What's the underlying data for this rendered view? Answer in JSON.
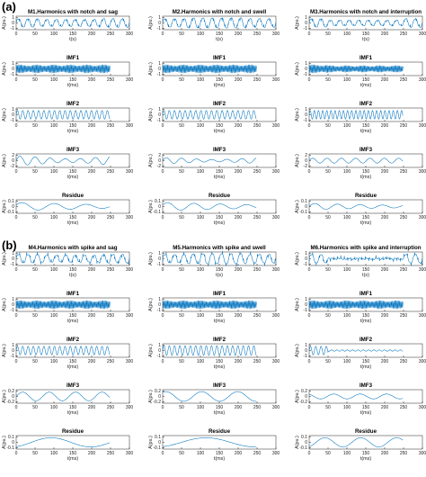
{
  "chart_data": {
    "type": "line",
    "groups": [
      {
        "label": "(a)",
        "columns": [
          {
            "signal_title": "M1.Harmonics with notch and sag",
            "disturbance": "notch_sag",
            "subplots": [
              {
                "title": "",
                "ylabel": "A(pu.)",
                "xlabel": "t(s)",
                "xlim": [
                  0,
                  300
                ],
                "yticks": [
                  "1",
                  "0",
                  "-1"
                ],
                "signal": "signal"
              },
              {
                "title": "IMF1",
                "ylabel": "A(pu.)",
                "xlabel": "t(ms)",
                "xlim": [
                  0,
                  300
                ],
                "yticks": [
                  "1",
                  "0",
                  "-1"
                ],
                "signal": "imf1"
              },
              {
                "title": "IMF2",
                "ylabel": "A(pu.)",
                "xlabel": "t(ms)",
                "xlim": [
                  0,
                  300
                ],
                "yticks": [
                  "1",
                  "0",
                  "-1"
                ],
                "signal": "imf2"
              },
              {
                "title": "IMF3",
                "ylabel": "A(pu.)",
                "xlabel": "t(ms)",
                "xlim": [
                  0,
                  300
                ],
                "yticks": [
                  "2",
                  "0",
                  "-2"
                ],
                "signal": "imf3"
              },
              {
                "title": "Residue",
                "ylabel": "A(pu.)",
                "xlabel": "t(ms)",
                "xlim": [
                  0,
                  300
                ],
                "yticks": [
                  "0.1",
                  "0",
                  "-0.1"
                ],
                "signal": "residue"
              }
            ]
          },
          {
            "signal_title": "M2.Harmonics with notch and swell",
            "disturbance": "notch_swell",
            "subplots": [
              {
                "title": "",
                "ylabel": "A(pu.)",
                "xlabel": "t(s)",
                "xlim": [
                  0,
                  300
                ],
                "yticks": [
                  "1",
                  "0",
                  "-1"
                ],
                "signal": "signal"
              },
              {
                "title": "IMF1",
                "ylabel": "A(pu.)",
                "xlabel": "t(ms)",
                "xlim": [
                  0,
                  300
                ],
                "yticks": [
                  "1",
                  "0",
                  "-1"
                ],
                "signal": "imf1"
              },
              {
                "title": "IMF2",
                "ylabel": "A(pu.)",
                "xlabel": "t(ms)",
                "xlim": [
                  0,
                  300
                ],
                "yticks": [
                  "1",
                  "0",
                  "-1"
                ],
                "signal": "imf2"
              },
              {
                "title": "IMF3",
                "ylabel": "A(pu.)",
                "xlabel": "t(ms)",
                "xlim": [
                  0,
                  300
                ],
                "yticks": [
                  "2",
                  "0",
                  "-2"
                ],
                "signal": "imf3"
              },
              {
                "title": "Residue",
                "ylabel": "A(pu.)",
                "xlabel": "t(ms)",
                "xlim": [
                  0,
                  300
                ],
                "yticks": [
                  "0.1",
                  "0",
                  "-0.1"
                ],
                "signal": "residue"
              }
            ]
          },
          {
            "signal_title": "M3.Harmonics with notch and interruption",
            "disturbance": "notch_interruption",
            "subplots": [
              {
                "title": "",
                "ylabel": "A(pu.)",
                "xlabel": "t(s)",
                "xlim": [
                  0,
                  300
                ],
                "yticks": [
                  "1",
                  "0",
                  "-1"
                ],
                "signal": "signal"
              },
              {
                "title": "IMF1",
                "ylabel": "A(pu.)",
                "xlabel": "t(ms)",
                "xlim": [
                  0,
                  300
                ],
                "yticks": [
                  "1",
                  "0",
                  "-1"
                ],
                "signal": "imf1"
              },
              {
                "title": "IMF2",
                "ylabel": "A(pu.)",
                "xlabel": "t(ms)",
                "xlim": [
                  0,
                  300
                ],
                "yticks": [
                  "1",
                  "0",
                  "-1"
                ],
                "signal": "imf2"
              },
              {
                "title": "IMF3",
                "ylabel": "A(pu.)",
                "xlabel": "t(ms)",
                "xlim": [
                  0,
                  300
                ],
                "yticks": [
                  "2",
                  "0",
                  "-2"
                ],
                "signal": "imf3"
              },
              {
                "title": "Residue",
                "ylabel": "A(pu.)",
                "xlabel": "t(ms)",
                "xlim": [
                  0,
                  300
                ],
                "yticks": [
                  "0.1",
                  "0",
                  "-0.1"
                ],
                "signal": "residue"
              }
            ]
          }
        ]
      },
      {
        "label": "(b)",
        "columns": [
          {
            "signal_title": "M4.Harmonics with spike and sag",
            "disturbance": "spike_sag",
            "subplots": [
              {
                "title": "",
                "ylabel": "A(pu.)",
                "xlabel": "t(s)",
                "xlim": [
                  0,
                  300
                ],
                "yticks": [
                  "1",
                  "0",
                  "-1"
                ],
                "signal": "signal"
              },
              {
                "title": "IMF1",
                "ylabel": "A(pu.)",
                "xlabel": "t(ms)",
                "xlim": [
                  0,
                  300
                ],
                "yticks": [
                  "1",
                  "0",
                  "-1"
                ],
                "signal": "imf1"
              },
              {
                "title": "IMF2",
                "ylabel": "A(pu.)",
                "xlabel": "t(ms)",
                "xlim": [
                  0,
                  300
                ],
                "yticks": [
                  "1",
                  "0",
                  "-1"
                ],
                "signal": "imf2"
              },
              {
                "title": "IMF3",
                "ylabel": "A(pu.)",
                "xlabel": "t(ms)",
                "xlim": [
                  0,
                  300
                ],
                "yticks": [
                  "0.2",
                  "0",
                  "-0.2"
                ],
                "signal": "imf3"
              },
              {
                "title": "Residue",
                "ylabel": "A(pu.)",
                "xlabel": "t(ms)",
                "xlim": [
                  0,
                  300
                ],
                "yticks": [
                  "0.1",
                  "0",
                  "-0.1"
                ],
                "signal": "residue"
              }
            ]
          },
          {
            "signal_title": "M5.Harmonics with spike and swell",
            "disturbance": "spike_swell",
            "subplots": [
              {
                "title": "",
                "ylabel": "A(pu.)",
                "xlabel": "t(s)",
                "xlim": [
                  0,
                  300
                ],
                "yticks": [
                  "1",
                  "0",
                  "-1"
                ],
                "signal": "signal"
              },
              {
                "title": "IMF1",
                "ylabel": "A(pu.)",
                "xlabel": "t(ms)",
                "xlim": [
                  0,
                  300
                ],
                "yticks": [
                  "1",
                  "0",
                  "-1"
                ],
                "signal": "imf1"
              },
              {
                "title": "IMF2",
                "ylabel": "A(pu.)",
                "xlabel": "t(ms)",
                "xlim": [
                  0,
                  300
                ],
                "yticks": [
                  "1",
                  "0",
                  "-1"
                ],
                "signal": "imf2"
              },
              {
                "title": "IMF3",
                "ylabel": "A(pu.)",
                "xlabel": "t(ms)",
                "xlim": [
                  0,
                  300
                ],
                "yticks": [
                  "0.2",
                  "0",
                  "-0.2"
                ],
                "signal": "imf3"
              },
              {
                "title": "Residue",
                "ylabel": "A(pu.)",
                "xlabel": "t(ms)",
                "xlim": [
                  0,
                  300
                ],
                "yticks": [
                  "0.1",
                  "0",
                  "-0.1"
                ],
                "signal": "residue"
              }
            ]
          },
          {
            "signal_title": "M6.Harmonics with spike and interruption",
            "disturbance": "spike_interruption",
            "subplots": [
              {
                "title": "",
                "ylabel": "A(pu.)",
                "xlabel": "t(s)",
                "xlim": [
                  0,
                  300
                ],
                "yticks": [
                  "1",
                  "0",
                  "-1"
                ],
                "signal": "signal"
              },
              {
                "title": "IMF1",
                "ylabel": "A(pu.)",
                "xlabel": "t(ms)",
                "xlim": [
                  0,
                  300
                ],
                "yticks": [
                  "1",
                  "0",
                  "-1"
                ],
                "signal": "imf1"
              },
              {
                "title": "IMF2",
                "ylabel": "A(pu.)",
                "xlabel": "t(ms)",
                "xlim": [
                  0,
                  300
                ],
                "yticks": [
                  "1",
                  "0",
                  "-1"
                ],
                "signal": "imf2"
              },
              {
                "title": "IMF3",
                "ylabel": "A(pu.)",
                "xlabel": "t(ms)",
                "xlim": [
                  0,
                  300
                ],
                "yticks": [
                  "0.2",
                  "0",
                  "-0.2"
                ],
                "signal": "imf3"
              },
              {
                "title": "Residue",
                "ylabel": "A(pu.)",
                "xlabel": "t(ms)",
                "xlim": [
                  0,
                  300
                ],
                "yticks": [
                  "0.1",
                  "0",
                  "-0.1"
                ],
                "signal": "residue"
              }
            ]
          }
        ]
      }
    ],
    "xticks": [
      "0",
      "50",
      "100",
      "150",
      "200",
      "250",
      "300"
    ],
    "line_color": "#0072bd",
    "axes_color": "#222222"
  }
}
